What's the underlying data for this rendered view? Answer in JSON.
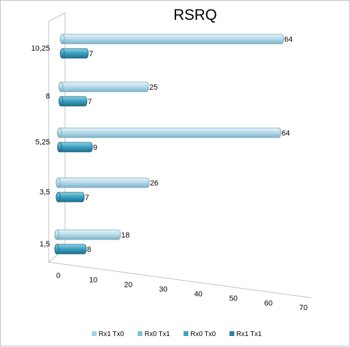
{
  "chart_data": {
    "type": "bar",
    "orientation": "horizontal",
    "title": "RSRQ",
    "categories": [
      "1,5",
      "3,5",
      "5,25",
      "8",
      "10,25"
    ],
    "series": [
      {
        "name": "Rx1 Tx0",
        "color": "#a6d1e3",
        "values": [
          18,
          26,
          64,
          25,
          64
        ]
      },
      {
        "name": "Rx0 Tx1",
        "color": "#7fc0d6",
        "values": [
          null,
          null,
          null,
          null,
          null
        ]
      },
      {
        "name": "Rx0 Tx0",
        "color": "#3fa3c2",
        "values": [
          8,
          7,
          9,
          7,
          7
        ]
      },
      {
        "name": "Rx1 Tx1",
        "color": "#2f7f9e",
        "values": [
          null,
          null,
          null,
          null,
          null
        ]
      }
    ],
    "xlim": [
      0,
      70
    ],
    "xticks": [
      "0",
      "10",
      "20",
      "30",
      "40",
      "50",
      "60",
      "70"
    ],
    "legend_position": "bottom",
    "style": "3d-cylinder"
  }
}
